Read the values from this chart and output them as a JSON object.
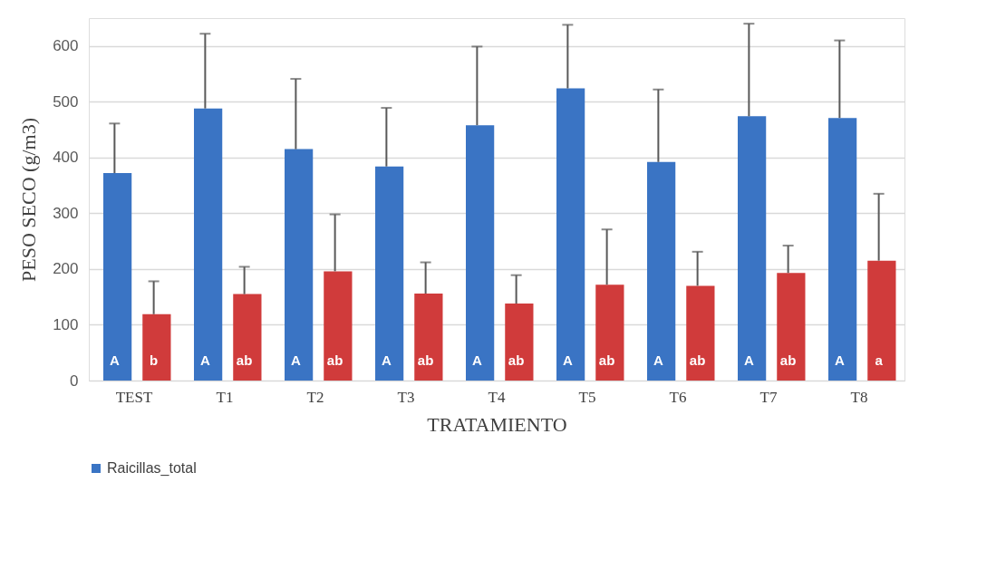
{
  "chart_data": {
    "type": "bar",
    "xlabel": "TRATAMIENTO",
    "ylabel": "PESO SECO (g/m3)",
    "categories": [
      "TEST",
      "T1",
      "T2",
      "T3",
      "T4",
      "T5",
      "T6",
      "T7",
      "T8"
    ],
    "series": [
      {
        "name": "Raicillas_total",
        "color": "#3a74c4",
        "values": [
          372,
          488,
          415,
          384,
          458,
          524,
          392,
          474,
          471
        ],
        "errors": [
          [
            372,
            461
          ],
          [
            488,
            622
          ],
          [
            415,
            541
          ],
          [
            384,
            489
          ],
          [
            458,
            599
          ],
          [
            524,
            638
          ],
          [
            392,
            522
          ],
          [
            474,
            640
          ],
          [
            471,
            610
          ]
        ],
        "value_labels": [
          "A",
          "A",
          "A",
          "A",
          "A",
          "A",
          "A",
          "A",
          "A"
        ]
      },
      {
        "color": "#d03b3b",
        "values": [
          119,
          155,
          196,
          156,
          138,
          172,
          170,
          193,
          215
        ],
        "errors": [
          [
            119,
            178
          ],
          [
            155,
            204
          ],
          [
            196,
            298
          ],
          [
            156,
            212
          ],
          [
            138,
            189
          ],
          [
            172,
            271
          ],
          [
            170,
            231
          ],
          [
            193,
            242
          ],
          [
            215,
            335
          ]
        ],
        "value_labels": [
          "b",
          "ab",
          "ab",
          "ab",
          "ab",
          "ab",
          "ab",
          "ab",
          "a"
        ]
      }
    ],
    "ylim": [
      0,
      650
    ],
    "yticks": [
      0,
      100,
      200,
      300,
      400,
      500,
      600
    ],
    "grid": "y",
    "legend": "bottom"
  }
}
